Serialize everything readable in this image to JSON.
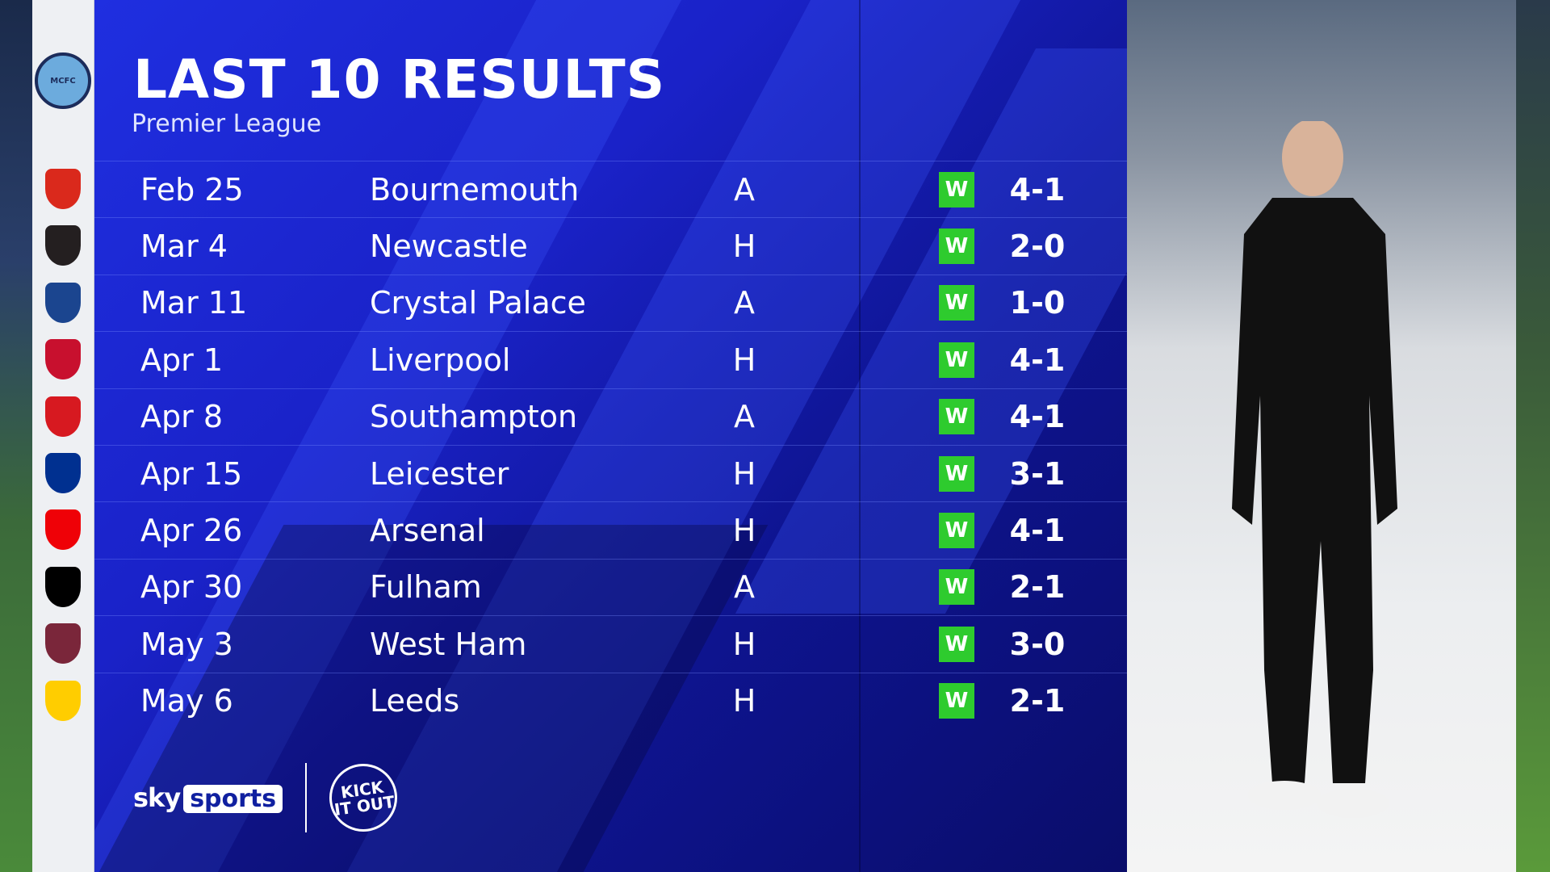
{
  "header": {
    "title": "LAST 10 RESULTS",
    "subtitle": "Premier League"
  },
  "team_crest": "MANCHESTER CITY",
  "results": [
    {
      "date": "Feb 25",
      "opponent": "Bournemouth",
      "venue": "A",
      "result": "W",
      "score": "4-1",
      "crest_color": "#da291c"
    },
    {
      "date": "Mar 4",
      "opponent": "Newcastle",
      "venue": "H",
      "result": "W",
      "score": "2-0",
      "crest_color": "#241f20"
    },
    {
      "date": "Mar 11",
      "opponent": "Crystal Palace",
      "venue": "A",
      "result": "W",
      "score": "1-0",
      "crest_color": "#1b458f"
    },
    {
      "date": "Apr 1",
      "opponent": "Liverpool",
      "venue": "H",
      "result": "W",
      "score": "4-1",
      "crest_color": "#c8102e"
    },
    {
      "date": "Apr 8",
      "opponent": "Southampton",
      "venue": "A",
      "result": "W",
      "score": "4-1",
      "crest_color": "#d71920"
    },
    {
      "date": "Apr 15",
      "opponent": "Leicester",
      "venue": "H",
      "result": "W",
      "score": "3-1",
      "crest_color": "#003090"
    },
    {
      "date": "Apr 26",
      "opponent": "Arsenal",
      "venue": "H",
      "result": "W",
      "score": "4-1",
      "crest_color": "#ef0107"
    },
    {
      "date": "Apr 30",
      "opponent": "Fulham",
      "venue": "A",
      "result": "W",
      "score": "2-1",
      "crest_color": "#000000"
    },
    {
      "date": "May 3",
      "opponent": "West Ham",
      "venue": "H",
      "result": "W",
      "score": "3-0",
      "crest_color": "#7a263a"
    },
    {
      "date": "May 6",
      "opponent": "Leeds",
      "venue": "H",
      "result": "W",
      "score": "2-1",
      "crest_color": "#ffcd00"
    }
  ],
  "colors": {
    "win": "#2ecb2e",
    "panel": "#1a22c8"
  },
  "branding": {
    "sky": "sky",
    "sports": "sports",
    "kick_it_out": "KICK IT OUT"
  }
}
